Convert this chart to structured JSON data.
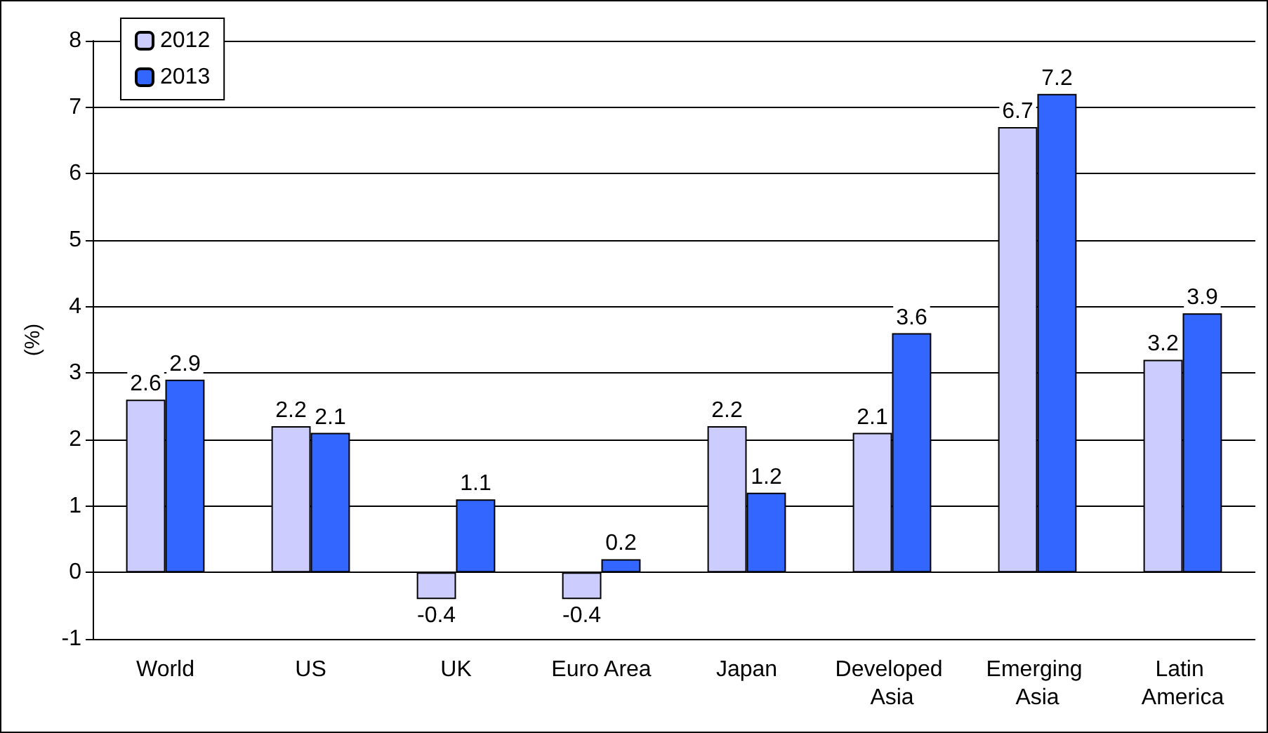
{
  "chart_data": {
    "type": "bar",
    "ylabel": "(%)",
    "categories": [
      "World",
      "US",
      "UK",
      "Euro Area",
      "Japan",
      "Developed Asia",
      "Emerging Asia",
      "Latin America"
    ],
    "series": [
      {
        "name": "2012",
        "color": "#ccccff",
        "values": [
          2.6,
          2.2,
          -0.4,
          -0.4,
          2.2,
          2.1,
          6.7,
          3.2
        ]
      },
      {
        "name": "2013",
        "color": "#3366ff",
        "values": [
          2.9,
          2.1,
          1.1,
          0.2,
          1.2,
          3.6,
          7.2,
          3.9
        ]
      }
    ],
    "ylim": [
      -1,
      8
    ],
    "yticks": [
      -1,
      0,
      1,
      2,
      3,
      4,
      5,
      6,
      7,
      8
    ],
    "grid": "y",
    "legend": "top left",
    "data_labels": true
  }
}
